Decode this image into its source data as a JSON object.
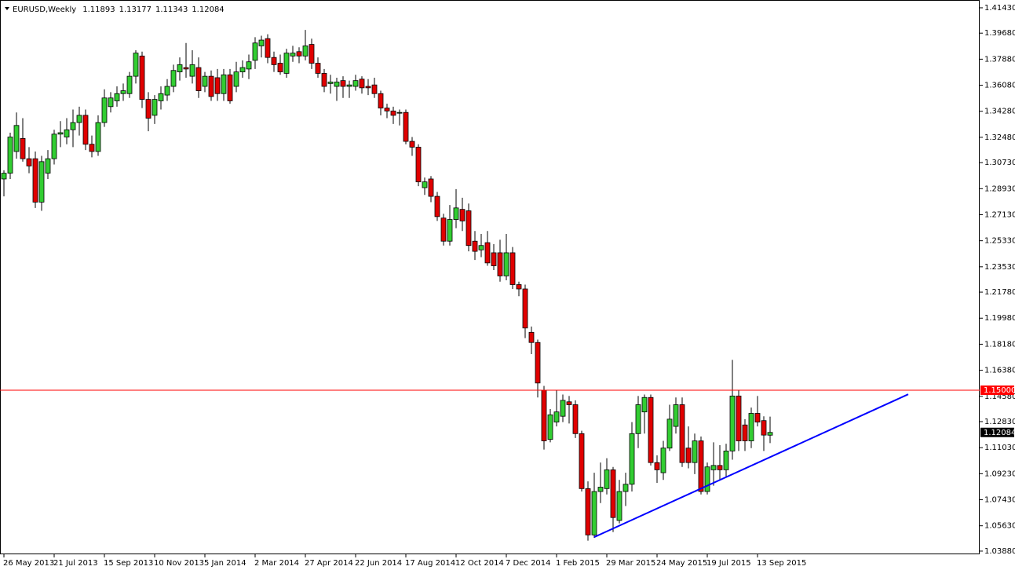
{
  "chart_data": {
    "type": "candlestick",
    "title": "EURUSD,Weekly",
    "header_prices": [
      "1.11893",
      "1.13177",
      "1.11343",
      "1.12084"
    ],
    "up_color": "#32cd32",
    "down_color": "#e00000",
    "categories": [
      "26 May 2013",
      null,
      null,
      null,
      null,
      null,
      null,
      null,
      "21 Jul 2013",
      null,
      null,
      null,
      null,
      null,
      null,
      null,
      "15 Sep 2013",
      null,
      null,
      null,
      null,
      null,
      null,
      null,
      "10 Nov 2013",
      null,
      null,
      null,
      null,
      null,
      null,
      null,
      "5 Jan 2014",
      null,
      null,
      null,
      null,
      null,
      null,
      null,
      "2 Mar 2014",
      null,
      null,
      null,
      null,
      null,
      null,
      null,
      "27 Apr 2014",
      null,
      null,
      null,
      null,
      null,
      null,
      null,
      "22 Jun 2014",
      null,
      null,
      null,
      null,
      null,
      null,
      null,
      "17 Aug 2014",
      null,
      null,
      null,
      null,
      null,
      null,
      null,
      "12 Oct 2014",
      null,
      null,
      null,
      null,
      null,
      null,
      null,
      "7 Dec 2014",
      null,
      null,
      null,
      null,
      null,
      null,
      null,
      "1 Feb 2015",
      null,
      null,
      null,
      null,
      null,
      null,
      null,
      "29 Mar 2015",
      null,
      null,
      null,
      null,
      null,
      null,
      null,
      "24 May 2015",
      null,
      null,
      null,
      null,
      null,
      null,
      null,
      "19 Jul 2015",
      null,
      null,
      null,
      null,
      null,
      null,
      null,
      "13 Sep 2015",
      null,
      null
    ],
    "open": [
      1.296,
      1.3,
      1.315,
      1.324,
      1.31,
      1.31,
      1.28,
      1.3,
      1.31,
      1.327,
      1.325,
      1.33,
      1.335,
      1.34,
      1.32,
      1.315,
      1.335,
      1.346,
      1.35,
      1.355,
      1.355,
      1.367,
      1.381,
      1.351,
      1.34,
      1.35,
      1.354,
      1.36,
      1.37,
      1.373,
      1.367,
      1.373,
      1.36,
      1.367,
      1.366,
      1.355,
      1.368,
      1.36,
      1.37,
      1.372,
      1.378,
      1.388,
      1.393,
      1.38,
      1.376,
      1.369,
      1.381,
      1.384,
      1.381,
      1.389,
      1.376,
      1.369,
      1.362,
      1.36,
      1.364,
      1.36,
      1.36,
      1.365,
      1.36,
      1.361,
      1.355,
      1.345,
      1.343,
      1.342,
      1.342,
      1.322,
      1.318,
      1.29,
      1.296,
      1.284,
      1.269,
      1.253,
      1.268,
      1.275,
      1.274,
      1.253,
      1.247,
      1.252,
      1.245,
      1.245,
      1.229,
      1.245,
      1.223,
      1.22,
      1.19,
      1.183,
      1.15,
      1.116,
      1.128,
      1.132,
      1.142,
      1.14,
      1.12,
      1.082,
      1.05,
      1.08,
      1.082,
      1.095,
      1.06,
      1.08,
      1.085,
      1.12,
      1.135,
      1.145,
      1.1,
      1.093,
      1.11,
      1.125,
      1.14,
      1.11,
      1.1,
      1.115,
      1.08,
      1.095,
      1.098,
      1.095,
      1.108,
      1.146,
      1.126,
      1.115,
      1.134,
      1.129,
      1.11893
    ],
    "high": [
      1.302,
      1.328,
      1.342,
      1.338,
      1.318,
      1.315,
      1.312,
      1.316,
      1.33,
      1.336,
      1.338,
      1.344,
      1.346,
      1.344,
      1.326,
      1.34,
      1.358,
      1.356,
      1.36,
      1.362,
      1.37,
      1.385,
      1.384,
      1.356,
      1.354,
      1.36,
      1.365,
      1.375,
      1.38,
      1.39,
      1.385,
      1.38,
      1.37,
      1.371,
      1.372,
      1.372,
      1.372,
      1.377,
      1.378,
      1.382,
      1.394,
      1.395,
      1.396,
      1.384,
      1.382,
      1.386,
      1.388,
      1.387,
      1.399,
      1.393,
      1.38,
      1.372,
      1.368,
      1.366,
      1.367,
      1.364,
      1.368,
      1.367,
      1.365,
      1.366,
      1.357,
      1.348,
      1.346,
      1.344,
      1.344,
      1.325,
      1.32,
      1.297,
      1.298,
      1.287,
      1.272,
      1.278,
      1.289,
      1.283,
      1.279,
      1.26,
      1.258,
      1.26,
      1.251,
      1.254,
      1.258,
      1.249,
      1.225,
      1.223,
      1.194,
      1.185,
      1.153,
      1.137,
      1.15,
      1.147,
      1.146,
      1.143,
      1.122,
      1.087,
      1.093,
      1.1,
      1.103,
      1.097,
      1.088,
      1.093,
      1.128,
      1.146,
      1.147,
      1.147,
      1.105,
      1.115,
      1.14,
      1.145,
      1.145,
      1.125,
      1.12,
      1.118,
      1.1,
      1.114,
      1.112,
      1.113,
      1.171,
      1.15,
      1.13,
      1.138,
      1.146,
      1.132,
      1.13177
    ],
    "low": [
      1.284,
      1.296,
      1.31,
      1.308,
      1.3,
      1.276,
      1.274,
      1.296,
      1.306,
      1.318,
      1.32,
      1.318,
      1.326,
      1.316,
      1.311,
      1.312,
      1.332,
      1.342,
      1.346,
      1.35,
      1.352,
      1.362,
      1.345,
      1.329,
      1.334,
      1.344,
      1.35,
      1.356,
      1.364,
      1.366,
      1.362,
      1.352,
      1.356,
      1.35,
      1.35,
      1.35,
      1.348,
      1.356,
      1.366,
      1.365,
      1.372,
      1.38,
      1.376,
      1.37,
      1.368,
      1.366,
      1.377,
      1.376,
      1.378,
      1.372,
      1.366,
      1.356,
      1.355,
      1.35,
      1.352,
      1.352,
      1.357,
      1.355,
      1.354,
      1.352,
      1.34,
      1.338,
      1.334,
      1.333,
      1.32,
      1.312,
      1.291,
      1.285,
      1.28,
      1.267,
      1.25,
      1.25,
      1.262,
      1.26,
      1.246,
      1.24,
      1.242,
      1.236,
      1.233,
      1.225,
      1.226,
      1.22,
      1.215,
      1.186,
      1.175,
      1.145,
      1.109,
      1.114,
      1.125,
      1.128,
      1.127,
      1.117,
      1.08,
      1.046,
      1.048,
      1.072,
      1.078,
      1.052,
      1.058,
      1.07,
      1.08,
      1.11,
      1.12,
      1.098,
      1.086,
      1.088,
      1.108,
      1.12,
      1.097,
      1.096,
      1.092,
      1.078,
      1.078,
      1.084,
      1.088,
      1.09,
      1.102,
      1.108,
      1.108,
      1.11,
      1.125,
      1.108,
      1.11343
    ],
    "close": [
      1.3,
      1.325,
      1.333,
      1.31,
      1.305,
      1.28,
      1.308,
      1.31,
      1.327,
      1.328,
      1.33,
      1.335,
      1.34,
      1.32,
      1.315,
      1.335,
      1.352,
      1.352,
      1.355,
      1.357,
      1.367,
      1.383,
      1.351,
      1.338,
      1.351,
      1.355,
      1.36,
      1.371,
      1.375,
      1.372,
      1.375,
      1.357,
      1.367,
      1.353,
      1.355,
      1.368,
      1.35,
      1.37,
      1.373,
      1.377,
      1.39,
      1.392,
      1.38,
      1.375,
      1.37,
      1.383,
      1.383,
      1.381,
      1.388,
      1.376,
      1.369,
      1.36,
      1.363,
      1.363,
      1.36,
      1.361,
      1.364,
      1.359,
      1.359,
      1.355,
      1.345,
      1.343,
      1.34,
      1.342,
      1.322,
      1.318,
      1.294,
      1.294,
      1.284,
      1.27,
      1.253,
      1.268,
      1.276,
      1.267,
      1.25,
      1.246,
      1.25,
      1.238,
      1.236,
      1.229,
      1.245,
      1.223,
      1.22,
      1.193,
      1.183,
      1.155,
      1.115,
      1.133,
      1.135,
      1.143,
      1.14,
      1.12,
      1.082,
      1.05,
      1.08,
      1.083,
      1.095,
      1.062,
      1.08,
      1.085,
      1.12,
      1.14,
      1.145,
      1.1,
      1.095,
      1.11,
      1.13,
      1.14,
      1.1,
      1.1,
      1.115,
      1.08,
      1.097,
      1.098,
      1.095,
      1.108,
      1.146,
      1.115,
      1.115,
      1.134,
      1.128,
      1.119,
      1.12084
    ],
    "ylim": [
      1.0366,
      1.4197
    ],
    "yticks": [
      {
        "value": 1.4143,
        "label": "1.41430"
      },
      {
        "value": 1.3968,
        "label": "1.39680"
      },
      {
        "value": 1.3788,
        "label": "1.37880"
      },
      {
        "value": 1.3608,
        "label": "1.36080"
      },
      {
        "value": 1.3428,
        "label": "1.34280"
      },
      {
        "value": 1.3248,
        "label": "1.32480"
      },
      {
        "value": 1.3073,
        "label": "1.30730"
      },
      {
        "value": 1.2893,
        "label": "1.28930"
      },
      {
        "value": 1.2713,
        "label": "1.27130"
      },
      {
        "value": 1.2533,
        "label": "1.25330"
      },
      {
        "value": 1.2353,
        "label": "1.23530"
      },
      {
        "value": 1.2178,
        "label": "1.21780"
      },
      {
        "value": 1.1998,
        "label": "1.19980"
      },
      {
        "value": 1.1818,
        "label": "1.18180"
      },
      {
        "value": 1.1638,
        "label": "1.16380"
      },
      {
        "value": 1.1458,
        "label": "1.14580"
      },
      {
        "value": 1.1283,
        "label": "1.12830"
      },
      {
        "value": 1.1103,
        "label": "1.11030"
      },
      {
        "value": 1.0923,
        "label": "1.09230"
      },
      {
        "value": 1.0743,
        "label": "1.07430"
      },
      {
        "value": 1.0563,
        "label": "1.05630"
      },
      {
        "value": 1.0388,
        "label": "1.03880"
      }
    ],
    "hline": {
      "value": 1.15,
      "label": "1.15000",
      "color": "#ff0000"
    },
    "last_price": {
      "value": 1.12084,
      "label": "1.12084"
    },
    "trendline": {
      "x": [
        94,
        144
      ],
      "y": [
        1.0485,
        1.1472
      ],
      "color": "#0000ff"
    }
  }
}
